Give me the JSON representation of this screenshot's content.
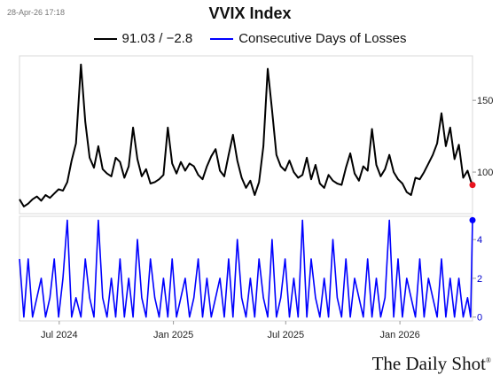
{
  "timestamp": "28-Apr-26 17:18",
  "title": "VVIX Index",
  "brand": "The Daily Shot",
  "brand_mark": "®",
  "colors": {
    "vvix": "#000000",
    "losses": "#0000ff",
    "last_dot_top": "#e8141e",
    "last_dot_bottom": "#0000ff"
  },
  "chart_data": {
    "type": "line",
    "title": "VVIX Index",
    "x_ticks": [
      "Jul 2024",
      "Jan 2025",
      "Jul 2025",
      "Jan 2026"
    ],
    "x_range": [
      "2024-04-28",
      "2026-04-28"
    ],
    "panels": [
      {
        "name": "top",
        "series": [
          {
            "name": "91.03 / −2.8",
            "color": "#000000",
            "points": [
              [
                "2024-04-28",
                81
              ],
              [
                "2024-05-05",
                76
              ],
              [
                "2024-05-12",
                78
              ],
              [
                "2024-05-19",
                81
              ],
              [
                "2024-05-26",
                83
              ],
              [
                "2024-06-02",
                80
              ],
              [
                "2024-06-09",
                84
              ],
              [
                "2024-06-16",
                82
              ],
              [
                "2024-06-23",
                85
              ],
              [
                "2024-06-30",
                88
              ],
              [
                "2024-07-07",
                87
              ],
              [
                "2024-07-14",
                93
              ],
              [
                "2024-07-21",
                108
              ],
              [
                "2024-07-28",
                120
              ],
              [
                "2024-08-05",
                175
              ],
              [
                "2024-08-12",
                135
              ],
              [
                "2024-08-19",
                110
              ],
              [
                "2024-08-26",
                103
              ],
              [
                "2024-09-02",
                118
              ],
              [
                "2024-09-09",
                102
              ],
              [
                "2024-09-16",
                99
              ],
              [
                "2024-09-23",
                97
              ],
              [
                "2024-09-30",
                110
              ],
              [
                "2024-10-07",
                107
              ],
              [
                "2024-10-14",
                96
              ],
              [
                "2024-10-21",
                104
              ],
              [
                "2024-10-28",
                131
              ],
              [
                "2024-11-04",
                109
              ],
              [
                "2024-11-11",
                97
              ],
              [
                "2024-11-18",
                102
              ],
              [
                "2024-11-25",
                92
              ],
              [
                "2024-12-02",
                93
              ],
              [
                "2024-12-09",
                95
              ],
              [
                "2024-12-16",
                98
              ],
              [
                "2024-12-23",
                131
              ],
              [
                "2024-12-30",
                106
              ],
              [
                "2025-01-06",
                99
              ],
              [
                "2025-01-13",
                107
              ],
              [
                "2025-01-20",
                101
              ],
              [
                "2025-01-27",
                106
              ],
              [
                "2025-02-03",
                104
              ],
              [
                "2025-02-10",
                98
              ],
              [
                "2025-02-17",
                95
              ],
              [
                "2025-02-24",
                104
              ],
              [
                "2025-03-03",
                111
              ],
              [
                "2025-03-10",
                116
              ],
              [
                "2025-03-17",
                101
              ],
              [
                "2025-03-24",
                97
              ],
              [
                "2025-03-31",
                112
              ],
              [
                "2025-04-07",
                126
              ],
              [
                "2025-04-14",
                108
              ],
              [
                "2025-04-21",
                96
              ],
              [
                "2025-04-28",
                89
              ],
              [
                "2025-05-05",
                94
              ],
              [
                "2025-05-12",
                84
              ],
              [
                "2025-05-19",
                93
              ],
              [
                "2025-05-26",
                118
              ],
              [
                "2025-06-02",
                172
              ],
              [
                "2025-06-09",
                143
              ],
              [
                "2025-06-16",
                112
              ],
              [
                "2025-06-23",
                104
              ],
              [
                "2025-06-30",
                101
              ],
              [
                "2025-07-07",
                108
              ],
              [
                "2025-07-14",
                100
              ],
              [
                "2025-07-21",
                96
              ],
              [
                "2025-07-28",
                98
              ],
              [
                "2025-08-04",
                110
              ],
              [
                "2025-08-11",
                95
              ],
              [
                "2025-08-18",
                105
              ],
              [
                "2025-08-25",
                92
              ],
              [
                "2025-09-01",
                89
              ],
              [
                "2025-09-08",
                98
              ],
              [
                "2025-09-15",
                94
              ],
              [
                "2025-09-22",
                92
              ],
              [
                "2025-09-29",
                91
              ],
              [
                "2025-10-06",
                103
              ],
              [
                "2025-10-13",
                113
              ],
              [
                "2025-10-20",
                99
              ],
              [
                "2025-10-27",
                94
              ],
              [
                "2025-11-03",
                104
              ],
              [
                "2025-11-10",
                101
              ],
              [
                "2025-11-17",
                130
              ],
              [
                "2025-11-24",
                105
              ],
              [
                "2025-12-01",
                97
              ],
              [
                "2025-12-08",
                102
              ],
              [
                "2025-12-15",
                112
              ],
              [
                "2025-12-22",
                100
              ],
              [
                "2025-12-29",
                95
              ],
              [
                "2026-01-05",
                92
              ],
              [
                "2026-01-12",
                86
              ],
              [
                "2026-01-19",
                84
              ],
              [
                "2026-01-26",
                96
              ],
              [
                "2026-02-02",
                95
              ],
              [
                "2026-02-09",
                100
              ],
              [
                "2026-02-16",
                106
              ],
              [
                "2026-02-23",
                112
              ],
              [
                "2026-03-02",
                120
              ],
              [
                "2026-03-09",
                141
              ],
              [
                "2026-03-16",
                118
              ],
              [
                "2026-03-23",
                131
              ],
              [
                "2026-03-30",
                109
              ],
              [
                "2026-04-06",
                119
              ],
              [
                "2026-04-13",
                96
              ],
              [
                "2026-04-20",
                101
              ],
              [
                "2026-04-25",
                94
              ],
              [
                "2026-04-28",
                91.03
              ]
            ]
          }
        ],
        "y_range": [
          71,
          181
        ],
        "y_ticks": [
          100,
          150
        ]
      },
      {
        "name": "bottom",
        "series": [
          {
            "name": "Consecutive Days of Losses",
            "color": "#0000ff",
            "points": [
              [
                "2024-04-28",
                3
              ],
              [
                "2024-05-05",
                0
              ],
              [
                "2024-05-12",
                3
              ],
              [
                "2024-05-19",
                0
              ],
              [
                "2024-05-26",
                1
              ],
              [
                "2024-06-02",
                2
              ],
              [
                "2024-06-09",
                0
              ],
              [
                "2024-06-16",
                1
              ],
              [
                "2024-06-23",
                3
              ],
              [
                "2024-06-30",
                0
              ],
              [
                "2024-07-07",
                2
              ],
              [
                "2024-07-14",
                5
              ],
              [
                "2024-07-21",
                0
              ],
              [
                "2024-07-28",
                1
              ],
              [
                "2024-08-05",
                0
              ],
              [
                "2024-08-12",
                3
              ],
              [
                "2024-08-19",
                1
              ],
              [
                "2024-08-26",
                0
              ],
              [
                "2024-09-02",
                5
              ],
              [
                "2024-09-09",
                1
              ],
              [
                "2024-09-16",
                0
              ],
              [
                "2024-09-23",
                2
              ],
              [
                "2024-09-30",
                0
              ],
              [
                "2024-10-07",
                3
              ],
              [
                "2024-10-14",
                0
              ],
              [
                "2024-10-21",
                2
              ],
              [
                "2024-10-28",
                0
              ],
              [
                "2024-11-04",
                4
              ],
              [
                "2024-11-11",
                1
              ],
              [
                "2024-11-18",
                0
              ],
              [
                "2024-11-25",
                3
              ],
              [
                "2024-12-02",
                1
              ],
              [
                "2024-12-09",
                0
              ],
              [
                "2024-12-16",
                2
              ],
              [
                "2024-12-23",
                0
              ],
              [
                "2024-12-30",
                3
              ],
              [
                "2025-01-06",
                0
              ],
              [
                "2025-01-13",
                1
              ],
              [
                "2025-01-20",
                2
              ],
              [
                "2025-01-27",
                0
              ],
              [
                "2025-02-03",
                1
              ],
              [
                "2025-02-10",
                3
              ],
              [
                "2025-02-17",
                0
              ],
              [
                "2025-02-24",
                2
              ],
              [
                "2025-03-03",
                0
              ],
              [
                "2025-03-10",
                1
              ],
              [
                "2025-03-17",
                2
              ],
              [
                "2025-03-24",
                0
              ],
              [
                "2025-03-31",
                3
              ],
              [
                "2025-04-07",
                0
              ],
              [
                "2025-04-14",
                4
              ],
              [
                "2025-04-21",
                1
              ],
              [
                "2025-04-28",
                0
              ],
              [
                "2025-05-05",
                2
              ],
              [
                "2025-05-12",
                0
              ],
              [
                "2025-05-19",
                3
              ],
              [
                "2025-05-26",
                1
              ],
              [
                "2025-06-02",
                0
              ],
              [
                "2025-06-09",
                4
              ],
              [
                "2025-06-16",
                0
              ],
              [
                "2025-06-23",
                1
              ],
              [
                "2025-06-30",
                3
              ],
              [
                "2025-07-07",
                0
              ],
              [
                "2025-07-14",
                2
              ],
              [
                "2025-07-21",
                0
              ],
              [
                "2025-07-28",
                5
              ],
              [
                "2025-08-04",
                0
              ],
              [
                "2025-08-11",
                3
              ],
              [
                "2025-08-18",
                1
              ],
              [
                "2025-08-25",
                0
              ],
              [
                "2025-09-01",
                2
              ],
              [
                "2025-09-08",
                0
              ],
              [
                "2025-09-15",
                4
              ],
              [
                "2025-09-22",
                1
              ],
              [
                "2025-09-29",
                0
              ],
              [
                "2025-10-06",
                3
              ],
              [
                "2025-10-13",
                0
              ],
              [
                "2025-10-20",
                2
              ],
              [
                "2025-10-27",
                1
              ],
              [
                "2025-11-03",
                0
              ],
              [
                "2025-11-10",
                3
              ],
              [
                "2025-11-17",
                0
              ],
              [
                "2025-11-24",
                2
              ],
              [
                "2025-12-01",
                0
              ],
              [
                "2025-12-08",
                1
              ],
              [
                "2025-12-15",
                5
              ],
              [
                "2025-12-22",
                0
              ],
              [
                "2025-12-29",
                3
              ],
              [
                "2026-01-05",
                0
              ],
              [
                "2026-01-12",
                2
              ],
              [
                "2026-01-19",
                1
              ],
              [
                "2026-01-26",
                0
              ],
              [
                "2026-02-02",
                3
              ],
              [
                "2026-02-09",
                0
              ],
              [
                "2026-02-16",
                2
              ],
              [
                "2026-02-23",
                1
              ],
              [
                "2026-03-02",
                0
              ],
              [
                "2026-03-09",
                3
              ],
              [
                "2026-03-16",
                0
              ],
              [
                "2026-03-23",
                2
              ],
              [
                "2026-03-30",
                0
              ],
              [
                "2026-04-06",
                2
              ],
              [
                "2026-04-13",
                0
              ],
              [
                "2026-04-20",
                1
              ],
              [
                "2026-04-25",
                0
              ],
              [
                "2026-04-28",
                5
              ]
            ]
          }
        ],
        "y_range": [
          -0.2,
          5.2
        ],
        "y_ticks": [
          0,
          2,
          4
        ]
      }
    ],
    "last_value_markers": true,
    "grid": false,
    "legend_position": "top-center"
  }
}
